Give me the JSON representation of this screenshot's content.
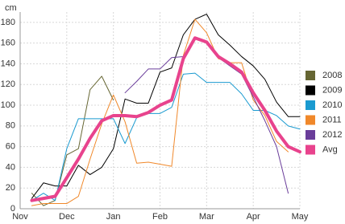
{
  "chart_data": {
    "type": "line",
    "y_label": "cm",
    "x": [
      0.25,
      0.5,
      0.75,
      1.0,
      1.25,
      1.5,
      1.75,
      2.0,
      2.25,
      2.5,
      2.75,
      3.0,
      3.25,
      3.5,
      3.75,
      4.0,
      4.25,
      4.5,
      4.75,
      5.0,
      5.25,
      5.5,
      5.75,
      6.0
    ],
    "xlim": [
      0,
      6
    ],
    "xticks": [
      {
        "value": 0,
        "label": "Nov"
      },
      {
        "value": 1,
        "label": "Dec"
      },
      {
        "value": 2,
        "label": "Jan"
      },
      {
        "value": 3,
        "label": "Feb"
      },
      {
        "value": 4,
        "label": "Mar"
      },
      {
        "value": 5,
        "label": "Apr"
      },
      {
        "value": 6,
        "label": "May"
      }
    ],
    "ylim": [
      0,
      190
    ],
    "yticks": [
      0,
      20,
      40,
      60,
      80,
      100,
      120,
      140,
      160,
      180
    ],
    "grid": true,
    "series": [
      {
        "name": "2008",
        "color": "#666633",
        "width": 1,
        "values": [
          15,
          3,
          8,
          52,
          58,
          115,
          128,
          105,
          null,
          null,
          null,
          null,
          null,
          null,
          null,
          null,
          null,
          null,
          null,
          null,
          null,
          null,
          null,
          null
        ]
      },
      {
        "name": "2009",
        "color": "#000000",
        "width": 1,
        "values": [
          10,
          25,
          22,
          22,
          42,
          33,
          40,
          58,
          106,
          102,
          102,
          132,
          136,
          168,
          183,
          188,
          168,
          158,
          147,
          138,
          125,
          103,
          89,
          89
        ]
      },
      {
        "name": "2010",
        "color": "#1a9ad0",
        "width": 1,
        "values": [
          8,
          15,
          8,
          58,
          87,
          87,
          87,
          87,
          63,
          88,
          92,
          92,
          98,
          130,
          131,
          122,
          122,
          122,
          111,
          95,
          95,
          90,
          80,
          77
        ]
      },
      {
        "name": "2011",
        "color": "#f0882a",
        "width": 1,
        "values": [
          3,
          5,
          5,
          5,
          12,
          48,
          82,
          110,
          84,
          44,
          45,
          43,
          41,
          148,
          183,
          170,
          145,
          141,
          141,
          105,
          90,
          65,
          55,
          null
        ]
      },
      {
        "name": "2012",
        "color": "#6a3d9a",
        "width": 1,
        "values": [
          null,
          null,
          null,
          null,
          null,
          null,
          null,
          null,
          112,
          123,
          135,
          135,
          146,
          147,
          166,
          162,
          146,
          138,
          130,
          108,
          85,
          60,
          15,
          null
        ]
      },
      {
        "name": "Avg",
        "color": "#e8438d",
        "width": 4,
        "values": [
          8,
          10,
          12,
          30,
          48,
          68,
          85,
          90,
          90,
          89,
          93,
          100,
          105,
          145,
          165,
          161,
          147,
          140,
          132,
          112,
          95,
          75,
          60,
          55
        ]
      }
    ]
  }
}
